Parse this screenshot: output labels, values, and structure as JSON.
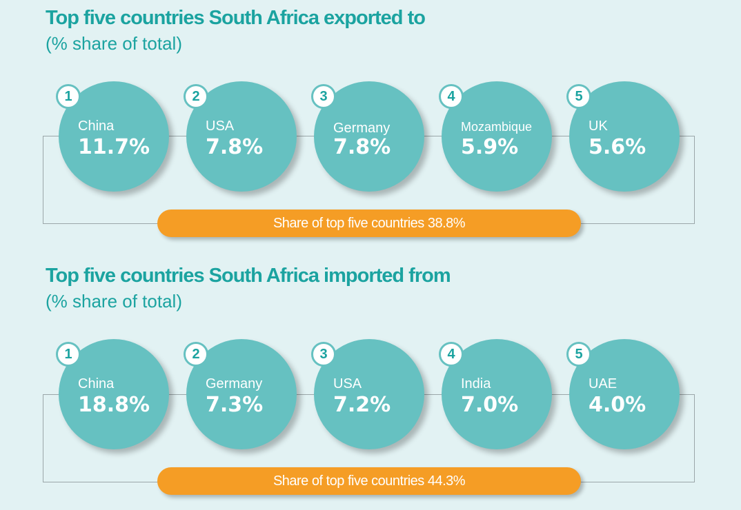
{
  "exports": {
    "title": "Top five countries South Africa exported to",
    "subtitle": "(% share of total)",
    "total_label": "Share of top five countries 38.8%",
    "items": [
      {
        "rank": "1",
        "country": "China",
        "value": "11.7%"
      },
      {
        "rank": "2",
        "country": "USA",
        "value": "7.8%"
      },
      {
        "rank": "3",
        "country": "Germany",
        "value": "7.8%"
      },
      {
        "rank": "4",
        "country": "Mozambique",
        "value": "5.9%"
      },
      {
        "rank": "5",
        "country": "UK",
        "value": "5.6%"
      }
    ]
  },
  "imports": {
    "title": "Top five countries South Africa imported from",
    "subtitle": "(% share of total)",
    "total_label": "Share of top five countries 44.3%",
    "items": [
      {
        "rank": "1",
        "country": "China",
        "value": "18.8%"
      },
      {
        "rank": "2",
        "country": "Germany",
        "value": "7.3%"
      },
      {
        "rank": "3",
        "country": "USA",
        "value": "7.2%"
      },
      {
        "rank": "4",
        "country": "India",
        "value": "7.0%"
      },
      {
        "rank": "5",
        "country": "UAE",
        "value": "4.0%"
      }
    ]
  },
  "colors": {
    "background": "#e2f2f3",
    "title_teal": "#1ba3a0",
    "circle_teal": "#66c1c1",
    "pill_orange": "#f59d25"
  },
  "chart_data": [
    {
      "type": "bubble",
      "title": "Top five countries South Africa exported to",
      "subtitle": "(% share of total)",
      "categories": [
        "China",
        "USA",
        "Germany",
        "Mozambique",
        "UK"
      ],
      "values": [
        11.7,
        7.8,
        7.8,
        5.9,
        5.6
      ],
      "unit": "%",
      "total": 38.8
    },
    {
      "type": "bubble",
      "title": "Top five countries South Africa imported from",
      "subtitle": "(% share of total)",
      "categories": [
        "China",
        "Germany",
        "USA",
        "India",
        "UAE"
      ],
      "values": [
        18.8,
        7.3,
        7.2,
        7.0,
        4.0
      ],
      "unit": "%",
      "total": 44.3
    }
  ]
}
